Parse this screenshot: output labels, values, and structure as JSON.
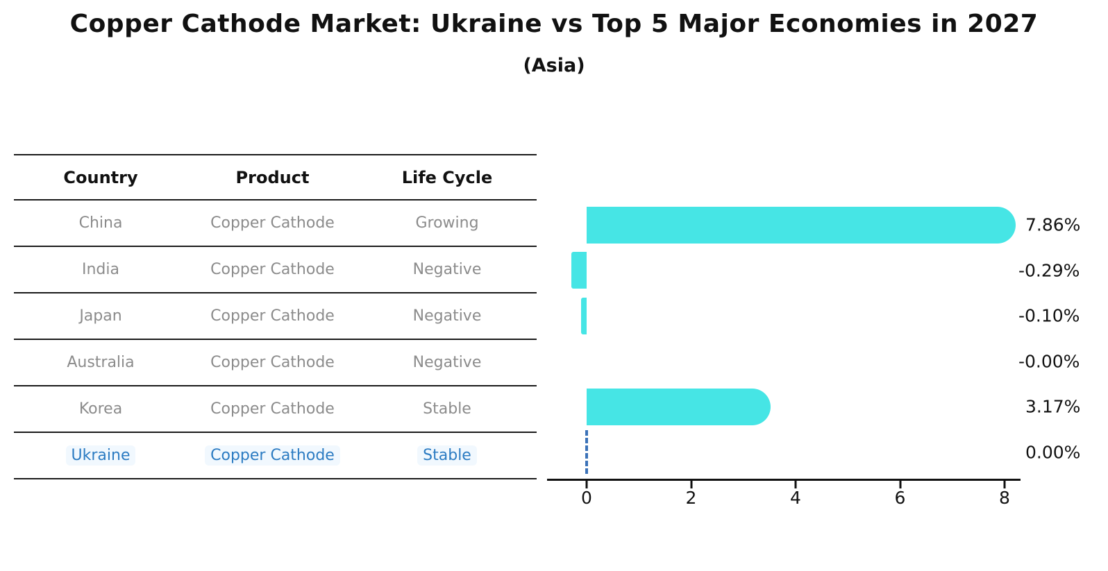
{
  "title": "Copper Cathode Market: Ukraine vs Top 5 Major Economies in 2027",
  "subtitle": "(Asia)",
  "table": {
    "headers": [
      "Country",
      "Product",
      "Life Cycle"
    ],
    "rows": [
      {
        "country": "China",
        "product": "Copper Cathode",
        "life_cycle": "Growing",
        "highlight": false
      },
      {
        "country": "India",
        "product": "Copper Cathode",
        "life_cycle": "Negative",
        "highlight": false
      },
      {
        "country": "Japan",
        "product": "Copper Cathode",
        "life_cycle": "Negative",
        "highlight": false
      },
      {
        "country": "Australia",
        "product": "Copper Cathode",
        "life_cycle": "Negative",
        "highlight": false
      },
      {
        "country": "Korea",
        "product": "Copper Cathode",
        "life_cycle": "Stable",
        "highlight": false
      },
      {
        "country": "Ukraine",
        "product": "Copper Cathode",
        "life_cycle": "Stable",
        "highlight": true
      }
    ]
  },
  "chart_data": {
    "type": "bar",
    "orientation": "horizontal",
    "title": "Copper Cathode Market: Ukraine vs Top 5 Major Economies in 2027",
    "subtitle": "(Asia)",
    "categories": [
      "China",
      "India",
      "Japan",
      "Australia",
      "Korea",
      "Ukraine"
    ],
    "values": [
      7.86,
      -0.29,
      -0.1,
      -0.0,
      3.17,
      0.0
    ],
    "value_labels": [
      "7.86%",
      "-0.29%",
      "-0.10%",
      "-0.00%",
      "3.17%",
      "0.00%"
    ],
    "xticks": [
      0,
      2,
      4,
      6,
      8
    ],
    "xlim": [
      -0.76,
      8.3
    ],
    "grid": false,
    "legend": "none",
    "bar_color": "#46e5e5",
    "highlight_line_color": "#3b72b8",
    "highlight_text_color": "#2b7bc2",
    "axis_color": "#111111",
    "zero_marker": "dashed line at 0 for Ukraine"
  },
  "colors": {
    "table_body_text": "#8b8b8b",
    "table_header_text": "#111111",
    "background": "#ffffff"
  }
}
